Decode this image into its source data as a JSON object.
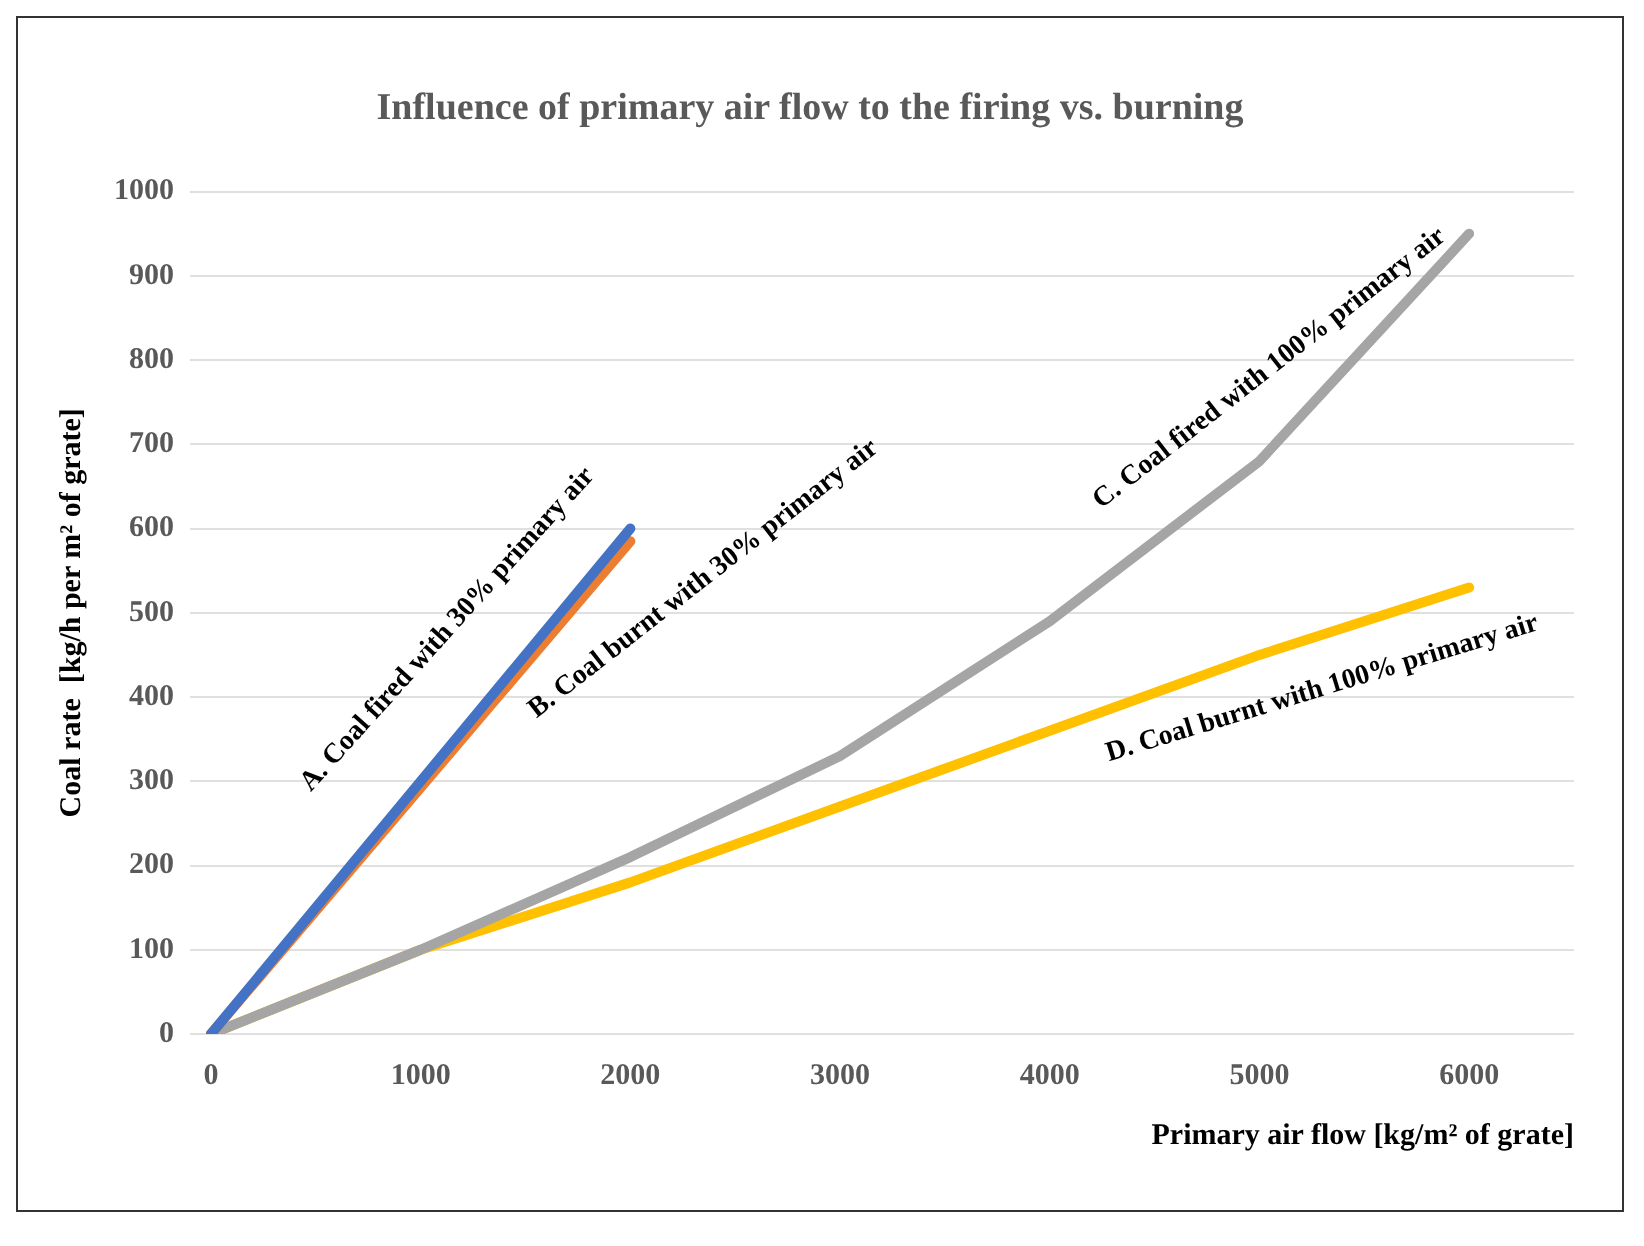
{
  "chart_data": {
    "type": "line",
    "title": "Influence of primary air flow to the firing vs. burning",
    "xlabel": "Primary air flow [kg/m² of grate]",
    "ylabel": "Coal rate  [kg/h per m² of grate]",
    "xlim": [
      -100,
      6500
    ],
    "xticks": [
      0,
      1000,
      2000,
      3000,
      4000,
      5000,
      6000
    ],
    "ylim": [
      0,
      1000
    ],
    "yticks": [
      0,
      100,
      200,
      300,
      400,
      500,
      600,
      700,
      800,
      900,
      1000
    ],
    "grid": "y",
    "legend": false,
    "marker": "none",
    "line_style": "solid",
    "series": [
      {
        "name": "A. Coal fired with 30% primary air",
        "color": "#4472c4",
        "x": [
          0,
          2000
        ],
        "values": [
          0,
          600
        ]
      },
      {
        "name": "B. Coal burnt with 30% primary air",
        "color": "#ed7d31",
        "x": [
          0,
          2000
        ],
        "values": [
          0,
          585
        ]
      },
      {
        "name": "C. Coal fired with 100% primary air",
        "color": "#a5a5a5",
        "x": [
          0,
          1000,
          2000,
          3000,
          4000,
          5000,
          6000
        ],
        "values": [
          0,
          100,
          210,
          330,
          490,
          680,
          950
        ]
      },
      {
        "name": "D. Coal burnt with 100% primary air",
        "color": "#ffc000",
        "x": [
          0,
          1000,
          2000,
          3000,
          4000,
          5000,
          6000
        ],
        "values": [
          0,
          100,
          180,
          270,
          360,
          450,
          530
        ]
      }
    ]
  }
}
